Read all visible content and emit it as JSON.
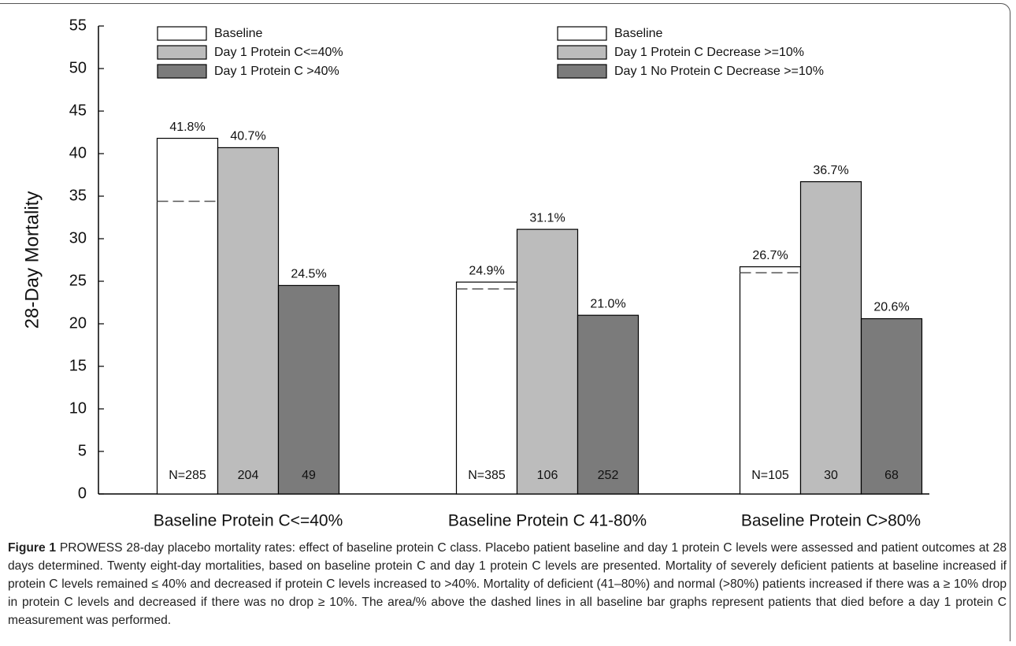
{
  "chart_data": {
    "type": "bar",
    "ylabel": "28-Day Mortality",
    "categories": [
      "Baseline Protein C<=40%",
      "Baseline Protein C 41-80%",
      "Baseline Protein C>80%"
    ],
    "ylim": [
      0,
      55
    ],
    "yticks": [
      0,
      5,
      10,
      15,
      20,
      25,
      30,
      35,
      40,
      45,
      50,
      55
    ],
    "series": [
      {
        "color": "#ffffff",
        "values": [
          41.8,
          24.9,
          26.7
        ],
        "value_labels": [
          "41.8%",
          "24.9%",
          "26.7%"
        ],
        "n_labels": [
          "N=285",
          "N=385",
          "N=105"
        ],
        "dashed_values": [
          34.4,
          24.1,
          26.0
        ]
      },
      {
        "color": "#bcbcbc",
        "values": [
          40.7,
          31.1,
          36.7
        ],
        "value_labels": [
          "40.7%",
          "31.1%",
          "36.7%"
        ],
        "n_labels": [
          "204",
          "106",
          "30"
        ]
      },
      {
        "color": "#7b7b7b",
        "values": [
          24.5,
          21.0,
          20.6
        ],
        "value_labels": [
          "24.5%",
          "21.0%",
          "20.6%"
        ],
        "n_labels": [
          "49",
          "252",
          "68"
        ]
      }
    ],
    "legends": [
      [
        "Baseline",
        "Day 1 Protein C<=40%",
        "Day 1 Protein C >40%"
      ],
      [
        "Baseline",
        "Day 1 Protein C Decrease >=10%",
        "Day 1 No Protein C Decrease >=10%"
      ]
    ]
  },
  "figure_label": "Figure 1",
  "caption": "PROWESS 28-day placebo mortality rates: effect of baseline protein C class. Placebo patient baseline and day 1 protein C levels were assessed and patient outcomes at 28 days determined. Twenty eight-day mortalities, based on baseline protein C and day 1 protein C levels are presented. Mortality of severely deficient patients at baseline increased if protein C levels remained ≤ 40% and decreased if protein C levels increased to >40%. Mortality of deficient (41–80%) and normal (>80%) patients increased if there was a ≥ 10% drop in protein C levels and decreased if there was no drop ≥ 10%. The area/% above the dashed lines in all baseline bar graphs represent patients that died before a day 1 protein C measurement was performed."
}
